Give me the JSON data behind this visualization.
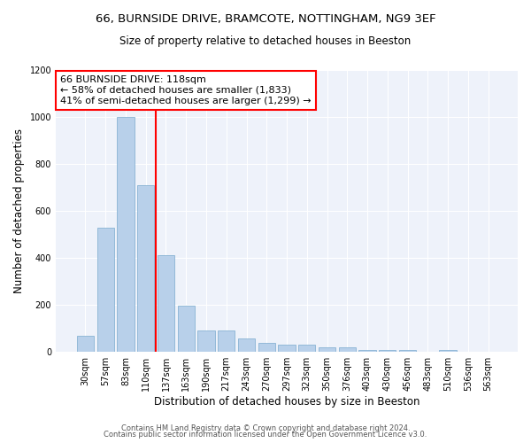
{
  "title_line1": "66, BURNSIDE DRIVE, BRAMCOTE, NOTTINGHAM, NG9 3EF",
  "title_line2": "Size of property relative to detached houses in Beeston",
  "xlabel": "Distribution of detached houses by size in Beeston",
  "ylabel": "Number of detached properties",
  "categories": [
    "30sqm",
    "57sqm",
    "83sqm",
    "110sqm",
    "137sqm",
    "163sqm",
    "190sqm",
    "217sqm",
    "243sqm",
    "270sqm",
    "297sqm",
    "323sqm",
    "350sqm",
    "376sqm",
    "403sqm",
    "430sqm",
    "456sqm",
    "483sqm",
    "510sqm",
    "536sqm",
    "563sqm"
  ],
  "values": [
    68,
    527,
    1000,
    710,
    410,
    197,
    90,
    90,
    58,
    40,
    32,
    32,
    20,
    20,
    10,
    10,
    10,
    0,
    10,
    0,
    0
  ],
  "bar_color": "#b8d0ea",
  "bar_edge_color": "#7aaace",
  "vline_color": "red",
  "vline_x_index": 3,
  "annotation_line1": "66 BURNSIDE DRIVE: 118sqm",
  "annotation_line2": "← 58% of detached houses are smaller (1,833)",
  "annotation_line3": "41% of semi-detached houses are larger (1,299) →",
  "annotation_box_color": "white",
  "annotation_box_edge_color": "red",
  "ylim": [
    0,
    1200
  ],
  "yticks": [
    0,
    200,
    400,
    600,
    800,
    1000,
    1200
  ],
  "background_color": "#eef2fa",
  "grid_color": "white",
  "footer_line1": "Contains HM Land Registry data © Crown copyright and database right 2024.",
  "footer_line2": "Contains public sector information licensed under the Open Government Licence v3.0.",
  "title_fontsize": 9.5,
  "subtitle_fontsize": 8.5,
  "xlabel_fontsize": 8.5,
  "ylabel_fontsize": 8.5,
  "tick_fontsize": 7,
  "annotation_fontsize": 8,
  "footer_fontsize": 6
}
